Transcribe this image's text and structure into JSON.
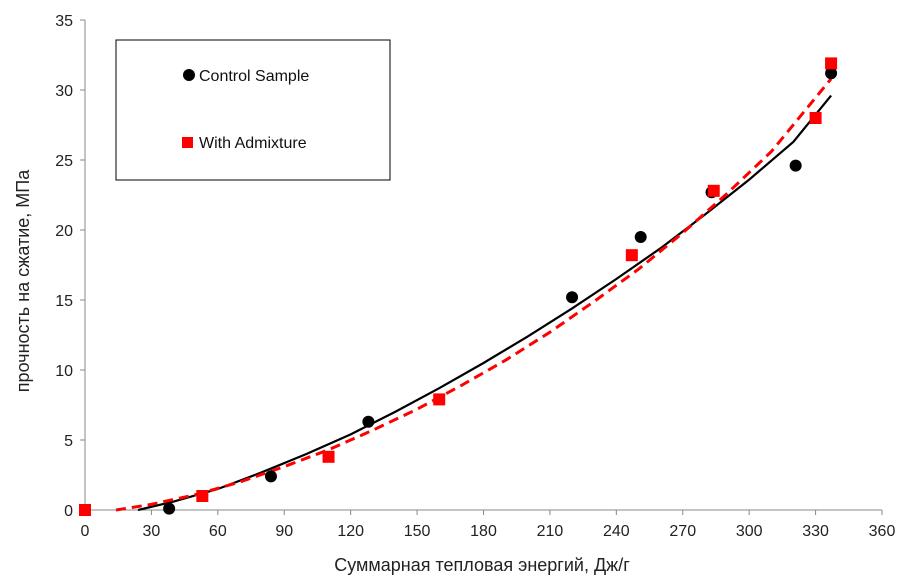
{
  "chart_data": {
    "type": "scatter",
    "xlabel": "Суммарная тепловая энергий, Дж/г",
    "ylabel": "прочность на сжатие, МПа",
    "xlim": [
      0,
      360
    ],
    "ylim": [
      0,
      35
    ],
    "x_ticks": [
      "0",
      "30",
      "60",
      "90",
      "120",
      "150",
      "180",
      "210",
      "240",
      "270",
      "300",
      "330",
      "360"
    ],
    "y_ticks": [
      "0",
      "5",
      "10",
      "15",
      "20",
      "25",
      "30",
      "35"
    ],
    "grid": false,
    "legend_position": "top-left",
    "series": [
      {
        "name": "Control Sample",
        "color": "#000000",
        "marker": "circle",
        "x": [
          38,
          84,
          128,
          220,
          251,
          283,
          321,
          337
        ],
        "y": [
          0.1,
          2.4,
          6.3,
          15.2,
          19.5,
          22.7,
          24.6,
          31.2
        ],
        "trend_x": [
          24,
          40,
          60,
          80,
          100,
          120,
          140,
          160,
          180,
          200,
          220,
          240,
          260,
          280,
          300,
          320,
          337
        ],
        "trend_y": [
          0.0,
          0.6,
          1.5,
          2.7,
          4.0,
          5.4,
          7.0,
          8.7,
          10.5,
          12.4,
          14.4,
          16.5,
          18.7,
          21.1,
          23.6,
          26.3,
          29.6
        ],
        "trend_style": "solid"
      },
      {
        "name": "With Admixture",
        "color": "#ff0000",
        "marker": "square",
        "x": [
          0,
          53,
          110,
          160,
          247,
          284,
          330,
          337
        ],
        "y": [
          0.0,
          1.0,
          3.8,
          7.9,
          18.2,
          22.8,
          28.0,
          31.9
        ],
        "trend_x": [
          14,
          30,
          50,
          70,
          90,
          110,
          130,
          150,
          170,
          190,
          210,
          230,
          250,
          270,
          290,
          310,
          337
        ],
        "trend_y": [
          0.0,
          0.4,
          1.1,
          2.0,
          3.1,
          4.3,
          5.7,
          7.2,
          8.9,
          10.7,
          12.7,
          14.9,
          17.2,
          19.8,
          22.6,
          25.6,
          30.8
        ],
        "trend_style": "dashed"
      }
    ]
  }
}
